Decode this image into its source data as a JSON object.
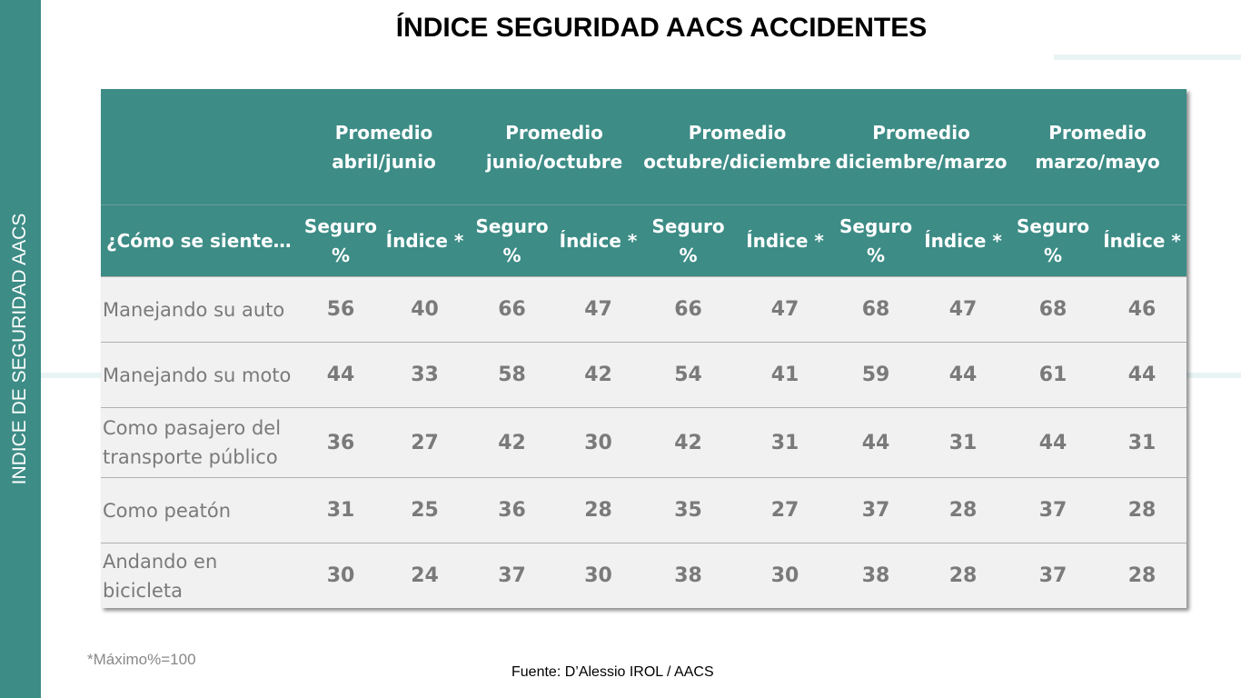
{
  "sidebar": {
    "label": "INDICE DE SEGURIDAD AACS"
  },
  "title": "ÍNDICE SEGURIDAD AACS ACCIDENTES",
  "table": {
    "row_header": "¿Cómo se siente…",
    "periods": [
      "Promedio abril/junio",
      "Promedio junio/octubre",
      "Promedio octubre/diciembre",
      "Promedio diciembre/marzo",
      "Promedio marzo/mayo"
    ],
    "subheaders": [
      "Seguro %",
      "Índice *"
    ],
    "rows": [
      {
        "label": "Manejando su auto",
        "values": [
          "56",
          "40",
          "66",
          "47",
          "66",
          "47",
          "68",
          "47",
          "68",
          "46"
        ]
      },
      {
        "label": "Manejando su moto",
        "values": [
          "44",
          "33",
          "58",
          "42",
          "54",
          "41",
          "59",
          "44",
          "61",
          "44"
        ]
      },
      {
        "label": "Como pasajero del transporte público",
        "values": [
          "36",
          "27",
          "42",
          "30",
          "42",
          "31",
          "44",
          "31",
          "44",
          "31"
        ]
      },
      {
        "label": "Como peatón",
        "values": [
          "31",
          "25",
          "36",
          "28",
          "35",
          "27",
          "37",
          "28",
          "37",
          "28"
        ]
      },
      {
        "label": "Andando en bicicleta",
        "values": [
          "30",
          "24",
          "37",
          "30",
          "38",
          "30",
          "38",
          "28",
          "37",
          "28"
        ]
      }
    ]
  },
  "footnote": "*Máximo%=100",
  "source": "Fuente: D’Alessio IROL / AACS",
  "colors": {
    "accent": "#3d8c86",
    "row_bg": "#f1f1f1",
    "value_text": "#7a7a7a"
  }
}
